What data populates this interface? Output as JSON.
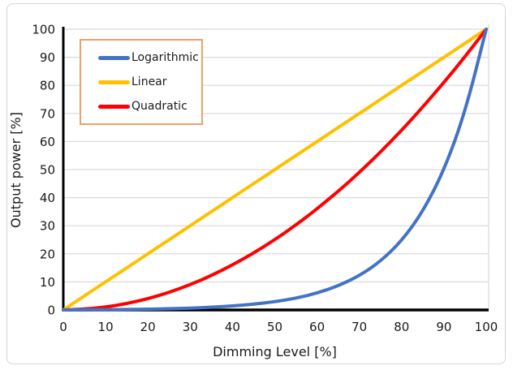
{
  "chart": {
    "frame_border_color": "#d6d6d6",
    "background_color": "#ffffff",
    "axis_color": "#000000",
    "gridline_color": "#d9d9d9",
    "plot_border_color": "#d9d9d9",
    "text_color": "#1a1a1a",
    "legend": {
      "border_color": "#eda06a",
      "items": [
        {
          "label": "Logarithmic",
          "color": "#4472c4"
        },
        {
          "label": "Linear",
          "color": "#ffc000"
        },
        {
          "label": "Quadratic",
          "color": "#ff0000"
        }
      ]
    }
  },
  "chart_data": {
    "type": "line",
    "title": "",
    "xlabel": "Dimming Level [%]",
    "ylabel": "Output power [%]",
    "xlim": [
      0,
      100
    ],
    "ylim": [
      0,
      100
    ],
    "x_ticks": [
      0,
      10,
      20,
      30,
      40,
      50,
      60,
      70,
      80,
      90,
      100
    ],
    "y_ticks": [
      0,
      10,
      20,
      30,
      40,
      50,
      60,
      70,
      80,
      90,
      100
    ],
    "grid": "horizontal",
    "legend_position": "top-left",
    "x": [
      0,
      5,
      10,
      15,
      20,
      25,
      30,
      35,
      40,
      45,
      50,
      55,
      60,
      65,
      70,
      75,
      80,
      85,
      90,
      95,
      100
    ],
    "series": [
      {
        "name": "Logarithmic",
        "color": "#4472c4",
        "values": [
          0,
          0.04,
          0.09,
          0.17,
          0.28,
          0.43,
          0.65,
          0.97,
          1.41,
          2.04,
          2.93,
          4.2,
          6.0,
          8.55,
          12.17,
          17.3,
          24.59,
          34.93,
          49.61,
          70.44,
          100
        ]
      },
      {
        "name": "Linear",
        "color": "#ffc000",
        "values": [
          0,
          5,
          10,
          15,
          20,
          25,
          30,
          35,
          40,
          45,
          50,
          55,
          60,
          65,
          70,
          75,
          80,
          85,
          90,
          95,
          100
        ]
      },
      {
        "name": "Quadratic",
        "color": "#ff0000",
        "values": [
          0,
          0.25,
          1,
          2.25,
          4,
          6.25,
          9,
          12.25,
          16,
          20.25,
          25,
          30.25,
          36,
          42.25,
          49,
          56.25,
          64,
          72.25,
          81,
          90.25,
          100
        ]
      }
    ]
  }
}
